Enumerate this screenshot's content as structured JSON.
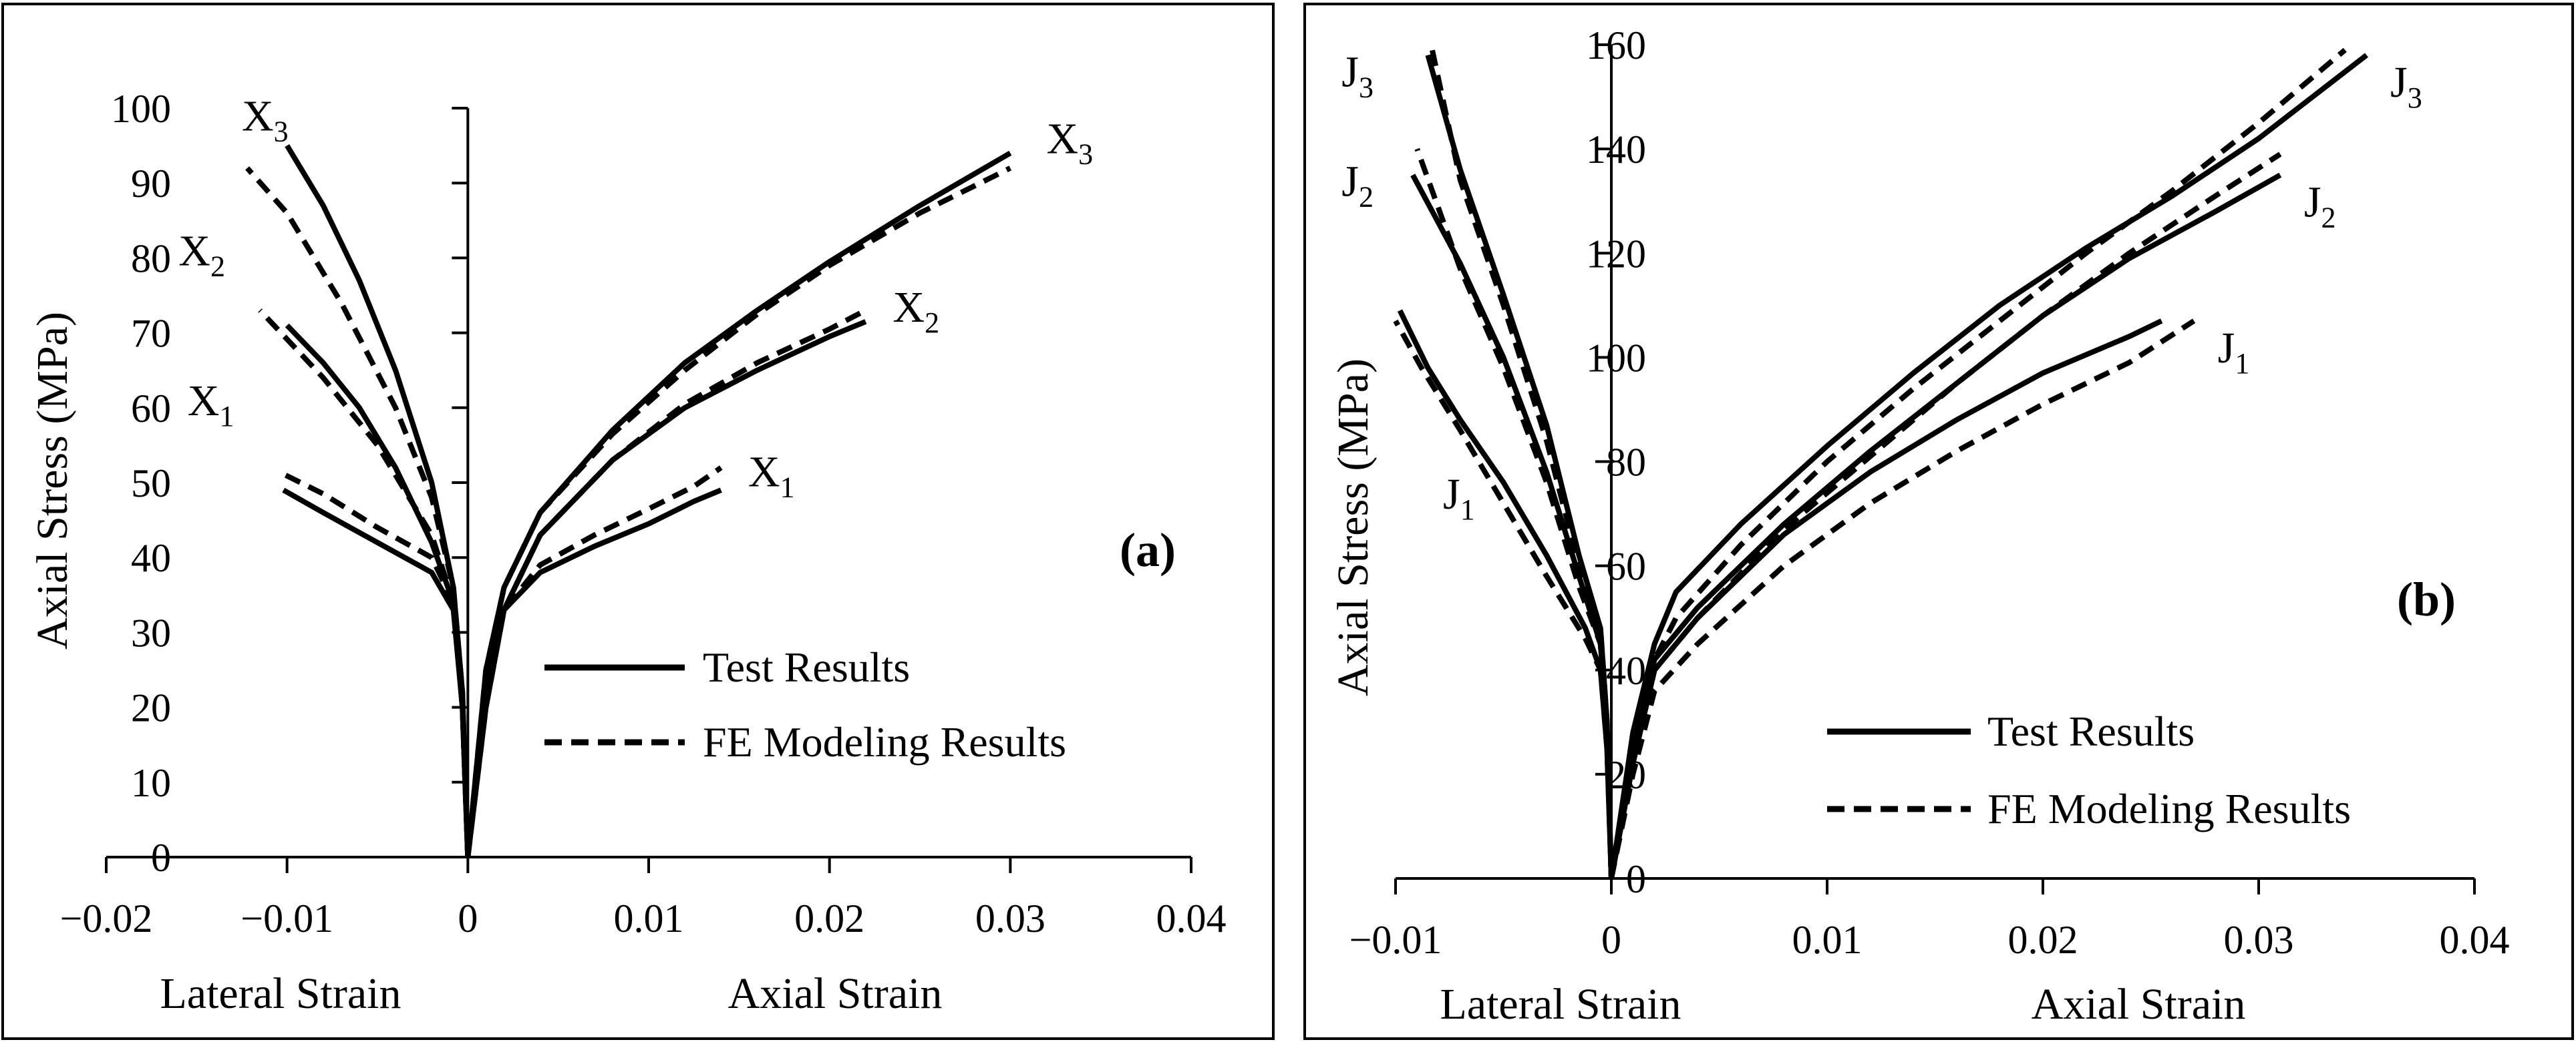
{
  "chart_data": [
    {
      "panel_label": "(a)",
      "type": "line",
      "ylabel": "Axial Stress (MPa)",
      "xlabel_left": "Lateral Strain",
      "xlabel_right": "Axial Strain",
      "xlim": [
        -0.02,
        0.04
      ],
      "ylim": [
        0,
        100
      ],
      "xticks": [
        -0.02,
        -0.01,
        0,
        0.01,
        0.02,
        0.03,
        0.04
      ],
      "xtick_labels": [
        "−0.02",
        "−0.01",
        "0",
        "0.01",
        "0.02",
        "0.03",
        "0.04"
      ],
      "yticks": [
        0,
        10,
        20,
        30,
        40,
        50,
        60,
        70,
        80,
        90,
        100
      ],
      "ytick_labels": [
        "0",
        "10",
        "20",
        "30",
        "40",
        "50",
        "60",
        "70",
        "80",
        "90",
        "100"
      ],
      "legend": {
        "position": "lower-right",
        "entries": [
          {
            "label": "Test Results",
            "style": "solid"
          },
          {
            "label": "FE Modeling Results",
            "style": "dashed"
          }
        ]
      },
      "series": [
        {
          "name": "X1 Test",
          "style": "solid",
          "lateral": [
            [
              0,
              0
            ],
            [
              -0.0003,
              20
            ],
            [
              -0.0008,
              33
            ],
            [
              -0.002,
              38
            ],
            [
              -0.005,
              42
            ],
            [
              -0.008,
              46
            ],
            [
              -0.0102,
              49
            ]
          ],
          "axial": [
            [
              0,
              0
            ],
            [
              0.001,
              20
            ],
            [
              0.002,
              33
            ],
            [
              0.004,
              38
            ],
            [
              0.007,
              41.5
            ],
            [
              0.01,
              44.5
            ],
            [
              0.0125,
              47.5
            ],
            [
              0.014,
              49
            ]
          ]
        },
        {
          "name": "X1 FE",
          "style": "dashed",
          "lateral": [
            [
              0,
              0
            ],
            [
              -0.0003,
              20
            ],
            [
              -0.0008,
              34
            ],
            [
              -0.002,
              40
            ],
            [
              -0.005,
              44
            ],
            [
              -0.008,
              48.5
            ],
            [
              -0.0105,
              51.5
            ]
          ],
          "axial": [
            [
              0,
              0
            ],
            [
              0.001,
              20
            ],
            [
              0.002,
              33
            ],
            [
              0.004,
              39
            ],
            [
              0.007,
              43
            ],
            [
              0.01,
              46.5
            ],
            [
              0.0125,
              49.5
            ],
            [
              0.014,
              52
            ]
          ]
        },
        {
          "name": "X2 Test",
          "style": "solid",
          "lateral": [
            [
              0,
              0
            ],
            [
              -0.0003,
              20
            ],
            [
              -0.0008,
              34
            ],
            [
              -0.002,
              42
            ],
            [
              -0.004,
              52
            ],
            [
              -0.006,
              60
            ],
            [
              -0.008,
              66
            ],
            [
              -0.01,
              71
            ]
          ],
          "axial": [
            [
              0,
              0
            ],
            [
              0.001,
              22
            ],
            [
              0.002,
              33
            ],
            [
              0.004,
              43
            ],
            [
              0.008,
              53
            ],
            [
              0.012,
              60
            ],
            [
              0.016,
              65
            ],
            [
              0.02,
              69.5
            ],
            [
              0.022,
              71.5
            ]
          ]
        },
        {
          "name": "X2 FE",
          "style": "dashed",
          "lateral": [
            [
              0,
              0
            ],
            [
              -0.0003,
              20
            ],
            [
              -0.0008,
              34
            ],
            [
              -0.002,
              43
            ],
            [
              -0.005,
              55
            ],
            [
              -0.008,
              64
            ],
            [
              -0.0115,
              73
            ]
          ],
          "axial": [
            [
              0,
              0
            ],
            [
              0.001,
              22
            ],
            [
              0.002,
              33
            ],
            [
              0.004,
              43
            ],
            [
              0.008,
              53
            ],
            [
              0.012,
              60.5
            ],
            [
              0.016,
              66
            ],
            [
              0.02,
              70.5
            ],
            [
              0.022,
              73
            ]
          ]
        },
        {
          "name": "X3 Test",
          "style": "solid",
          "lateral": [
            [
              0,
              0
            ],
            [
              -0.0003,
              22
            ],
            [
              -0.0008,
              36
            ],
            [
              -0.002,
              50
            ],
            [
              -0.004,
              65
            ],
            [
              -0.006,
              77
            ],
            [
              -0.008,
              87
            ],
            [
              -0.01,
              95
            ]
          ],
          "axial": [
            [
              0,
              0
            ],
            [
              0.001,
              25
            ],
            [
              0.002,
              36
            ],
            [
              0.004,
              46
            ],
            [
              0.008,
              57
            ],
            [
              0.012,
              66
            ],
            [
              0.016,
              73
            ],
            [
              0.02,
              79.5
            ],
            [
              0.025,
              87
            ],
            [
              0.03,
              94
            ]
          ]
        },
        {
          "name": "X3 FE",
          "style": "dashed",
          "lateral": [
            [
              0,
              0
            ],
            [
              -0.0003,
              22
            ],
            [
              -0.0008,
              36
            ],
            [
              -0.002,
              48
            ],
            [
              -0.004,
              60
            ],
            [
              -0.007,
              74
            ],
            [
              -0.01,
              86
            ],
            [
              -0.0122,
              92
            ]
          ],
          "axial": [
            [
              0,
              0
            ],
            [
              0.001,
              25
            ],
            [
              0.002,
              36
            ],
            [
              0.004,
              46
            ],
            [
              0.008,
              56.5
            ],
            [
              0.012,
              65
            ],
            [
              0.016,
              72.5
            ],
            [
              0.02,
              79
            ],
            [
              0.025,
              86
            ],
            [
              0.03,
              92
            ]
          ]
        }
      ],
      "curve_labels": [
        {
          "base": "X",
          "sub": "3",
          "x": -0.0125,
          "y": 97
        },
        {
          "base": "X",
          "sub": "2",
          "x": -0.016,
          "y": 79
        },
        {
          "base": "X",
          "sub": "1",
          "x": -0.0155,
          "y": 59
        },
        {
          "base": "X",
          "sub": "3",
          "x": 0.032,
          "y": 94
        },
        {
          "base": "X",
          "sub": "2",
          "x": 0.0235,
          "y": 71.5
        },
        {
          "base": "X",
          "sub": "1",
          "x": 0.0155,
          "y": 49.5
        }
      ]
    },
    {
      "panel_label": "(b)",
      "type": "line",
      "ylabel": "Axial Stress (MPa)",
      "xlabel_left": "Lateral Strain",
      "xlabel_right": "Axial Strain",
      "xlim": [
        -0.01,
        0.04
      ],
      "ylim": [
        0,
        160
      ],
      "xticks": [
        -0.01,
        0,
        0.01,
        0.02,
        0.03,
        0.04
      ],
      "xtick_labels": [
        "−0.01",
        "0",
        "0.01",
        "0.02",
        "0.03",
        "0.04"
      ],
      "yticks": [
        0,
        20,
        40,
        60,
        80,
        100,
        120,
        140,
        160
      ],
      "ytick_labels": [
        "0",
        "20",
        "40",
        "60",
        "80",
        "100",
        "120",
        "140",
        "160"
      ],
      "legend": {
        "position": "lower-right",
        "entries": [
          {
            "label": "Test Results",
            "style": "solid"
          },
          {
            "label": "FE Modeling Results",
            "style": "dashed"
          }
        ]
      },
      "series": [
        {
          "name": "J1 Test",
          "style": "solid",
          "lateral": [
            [
              0,
              0
            ],
            [
              -0.0002,
              25
            ],
            [
              -0.0005,
              40
            ],
            [
              -0.0012,
              48
            ],
            [
              -0.003,
              62
            ],
            [
              -0.005,
              76
            ],
            [
              -0.007,
              88
            ],
            [
              -0.0085,
              98
            ],
            [
              -0.0098,
              109
            ]
          ],
          "axial": [
            [
              0,
              0
            ],
            [
              0.001,
              22
            ],
            [
              0.002,
              40
            ],
            [
              0.004,
              50
            ],
            [
              0.008,
              66
            ],
            [
              0.012,
              78
            ],
            [
              0.016,
              88
            ],
            [
              0.02,
              97
            ],
            [
              0.024,
              104
            ],
            [
              0.0255,
              107
            ]
          ]
        },
        {
          "name": "J1 FE",
          "style": "dashed",
          "lateral": [
            [
              0,
              0
            ],
            [
              -0.0002,
              25
            ],
            [
              -0.0005,
              40
            ],
            [
              -0.0012,
              46
            ],
            [
              -0.003,
              58
            ],
            [
              -0.005,
              72
            ],
            [
              -0.007,
              86
            ],
            [
              -0.0088,
              98
            ],
            [
              -0.01,
              107
            ]
          ],
          "axial": [
            [
              0,
              0
            ],
            [
              0.001,
              20
            ],
            [
              0.002,
              36
            ],
            [
              0.004,
              45
            ],
            [
              0.008,
              60
            ],
            [
              0.012,
              72
            ],
            [
              0.016,
              82
            ],
            [
              0.02,
              91
            ],
            [
              0.024,
              99
            ],
            [
              0.027,
              107
            ]
          ]
        },
        {
          "name": "J2 Test",
          "style": "solid",
          "lateral": [
            [
              0,
              0
            ],
            [
              -0.0002,
              28
            ],
            [
              -0.0005,
              45
            ],
            [
              -0.0015,
              58
            ],
            [
              -0.003,
              78
            ],
            [
              -0.005,
              100
            ],
            [
              -0.007,
              118
            ],
            [
              -0.0092,
              135
            ]
          ],
          "axial": [
            [
              0,
              0
            ],
            [
              0.001,
              25
            ],
            [
              0.002,
              42
            ],
            [
              0.004,
              52
            ],
            [
              0.008,
              68
            ],
            [
              0.012,
              82
            ],
            [
              0.016,
              95
            ],
            [
              0.02,
              108
            ],
            [
              0.024,
              119
            ],
            [
              0.028,
              128
            ],
            [
              0.031,
              135
            ]
          ]
        },
        {
          "name": "J2 FE",
          "style": "dashed",
          "lateral": [
            [
              0,
              0
            ],
            [
              -0.0002,
              28
            ],
            [
              -0.0005,
              45
            ],
            [
              -0.0015,
              56
            ],
            [
              -0.003,
              76
            ],
            [
              -0.005,
              98
            ],
            [
              -0.007,
              117
            ],
            [
              -0.009,
              140
            ]
          ],
          "axial": [
            [
              0,
              0
            ],
            [
              0.001,
              22
            ],
            [
              0.002,
              40
            ],
            [
              0.004,
              50
            ],
            [
              0.008,
              67
            ],
            [
              0.012,
              81
            ],
            [
              0.016,
              95
            ],
            [
              0.02,
              108
            ],
            [
              0.024,
              120
            ],
            [
              0.028,
              131
            ],
            [
              0.031,
              139
            ]
          ]
        },
        {
          "name": "J3 Test",
          "style": "solid",
          "lateral": [
            [
              0,
              0
            ],
            [
              -0.0002,
              30
            ],
            [
              -0.0005,
              48
            ],
            [
              -0.0015,
              62
            ],
            [
              -0.003,
              87
            ],
            [
              -0.005,
              112
            ],
            [
              -0.007,
              136
            ],
            [
              -0.0085,
              158
            ]
          ],
          "axial": [
            [
              0,
              0
            ],
            [
              0.001,
              28
            ],
            [
              0.002,
              45
            ],
            [
              0.003,
              55
            ],
            [
              0.006,
              68
            ],
            [
              0.01,
              83
            ],
            [
              0.014,
              97
            ],
            [
              0.018,
              110
            ],
            [
              0.022,
              121
            ],
            [
              0.026,
              131
            ],
            [
              0.03,
              142
            ],
            [
              0.035,
              158
            ]
          ]
        },
        {
          "name": "J3 FE",
          "style": "dashed",
          "lateral": [
            [
              0,
              0
            ],
            [
              -0.0002,
              30
            ],
            [
              -0.0005,
              48
            ],
            [
              -0.0015,
              60
            ],
            [
              -0.003,
              84
            ],
            [
              -0.005,
              110
            ],
            [
              -0.007,
              134
            ],
            [
              -0.0083,
              159
            ]
          ],
          "axial": [
            [
              0,
              0
            ],
            [
              0.001,
              25
            ],
            [
              0.002,
              42
            ],
            [
              0.003,
              50
            ],
            [
              0.006,
              64
            ],
            [
              0.01,
              80
            ],
            [
              0.014,
              94
            ],
            [
              0.018,
              107
            ],
            [
              0.022,
              120
            ],
            [
              0.026,
              132
            ],
            [
              0.03,
              145
            ],
            [
              0.034,
              159
            ]
          ]
        }
      ],
      "curve_labels": [
        {
          "base": "J",
          "sub": "3",
          "x": -0.0125,
          "y": 152
        },
        {
          "base": "J",
          "sub": "2",
          "x": -0.0125,
          "y": 131
        },
        {
          "base": "J",
          "sub": "1",
          "x": -0.0078,
          "y": 71
        },
        {
          "base": "J",
          "sub": "3",
          "x": 0.0361,
          "y": 150
        },
        {
          "base": "J",
          "sub": "2",
          "x": 0.0321,
          "y": 127
        },
        {
          "base": "J",
          "sub": "1",
          "x": 0.0281,
          "y": 99
        }
      ]
    }
  ]
}
